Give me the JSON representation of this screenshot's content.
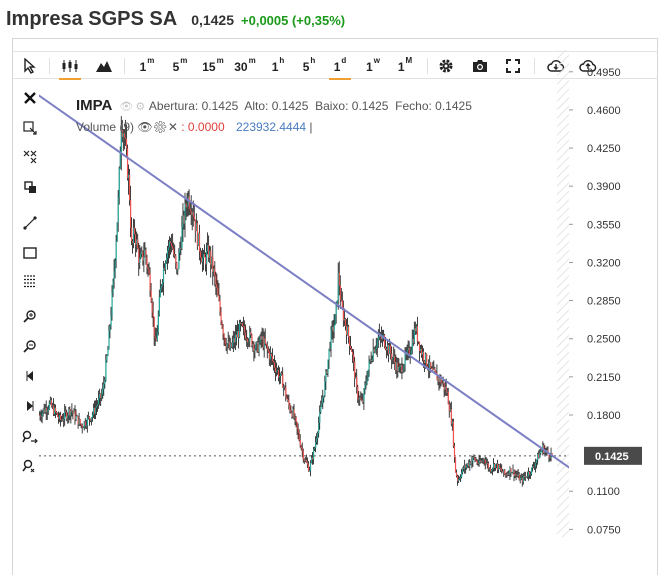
{
  "header": {
    "title": "Impresa SGPS SA",
    "price": "0,1425",
    "change": "+0,0005 (+0,35%)"
  },
  "toolbar": {
    "intervals": [
      "1m",
      "5m",
      "15m",
      "30m",
      "1h",
      "5h",
      "1d",
      "1w",
      "1M"
    ],
    "active_interval": "1d"
  },
  "legend": {
    "symbol": "IMPA",
    "open_label": "Abertura:",
    "open": "0.1425",
    "high_label": "Alto:",
    "high": "0.1425",
    "low_label": "Baixo:",
    "low": "0.1425",
    "close_label": "Fecho:",
    "close": "0.1425",
    "volume_label": "Volume (9)",
    "volume_value": "0.0000",
    "volume_ma": "223932.4444"
  },
  "colors": {
    "up": "#26a69a",
    "down": "#ef5350",
    "trendline": "#7b7fc4",
    "price_tag": "#4a4a4a",
    "accent": "#f0a030",
    "change_green": "#1a9a1a"
  },
  "chart_data": {
    "type": "candlestick",
    "symbol": "IMPA",
    "y_axis_ticks": [
      0.495,
      0.46,
      0.425,
      0.39,
      0.355,
      0.32,
      0.285,
      0.25,
      0.215,
      0.18,
      0.1425,
      0.11,
      0.075
    ],
    "y_axis_tick_labels": [
      "0.4950",
      "0.4600",
      "0.4250",
      "0.3900",
      "0.3550",
      "0.3200",
      "0.2850",
      "0.2500",
      "0.2150",
      "0.1800",
      "0.1425",
      "0.1100",
      "0.0750"
    ],
    "ylim": [
      0.068,
      0.515
    ],
    "last_price": 0.1425,
    "last_price_label": "0.1425",
    "price_path": [
      [
        0,
        0.18
      ],
      [
        0.02,
        0.19
      ],
      [
        0.04,
        0.175
      ],
      [
        0.06,
        0.185
      ],
      [
        0.08,
        0.17
      ],
      [
        0.1,
        0.18
      ],
      [
        0.12,
        0.2
      ],
      [
        0.13,
        0.24
      ],
      [
        0.14,
        0.3
      ],
      [
        0.15,
        0.38
      ],
      [
        0.155,
        0.45
      ],
      [
        0.16,
        0.44
      ],
      [
        0.17,
        0.39
      ],
      [
        0.175,
        0.33
      ],
      [
        0.18,
        0.35
      ],
      [
        0.19,
        0.32
      ],
      [
        0.2,
        0.33
      ],
      [
        0.21,
        0.3
      ],
      [
        0.22,
        0.24
      ],
      [
        0.23,
        0.3
      ],
      [
        0.24,
        0.33
      ],
      [
        0.25,
        0.34
      ],
      [
        0.26,
        0.31
      ],
      [
        0.27,
        0.35
      ],
      [
        0.28,
        0.38
      ],
      [
        0.29,
        0.37
      ],
      [
        0.3,
        0.34
      ],
      [
        0.31,
        0.32
      ],
      [
        0.32,
        0.33
      ],
      [
        0.33,
        0.31
      ],
      [
        0.34,
        0.28
      ],
      [
        0.35,
        0.25
      ],
      [
        0.36,
        0.24
      ],
      [
        0.37,
        0.25
      ],
      [
        0.38,
        0.26
      ],
      [
        0.39,
        0.255
      ],
      [
        0.4,
        0.25
      ],
      [
        0.41,
        0.24
      ],
      [
        0.42,
        0.25
      ],
      [
        0.43,
        0.24
      ],
      [
        0.44,
        0.23
      ],
      [
        0.45,
        0.22
      ],
      [
        0.46,
        0.21
      ],
      [
        0.47,
        0.19
      ],
      [
        0.48,
        0.18
      ],
      [
        0.49,
        0.16
      ],
      [
        0.5,
        0.14
      ],
      [
        0.51,
        0.13
      ],
      [
        0.52,
        0.15
      ],
      [
        0.53,
        0.18
      ],
      [
        0.54,
        0.21
      ],
      [
        0.55,
        0.25
      ],
      [
        0.56,
        0.27
      ],
      [
        0.565,
        0.31
      ],
      [
        0.57,
        0.28
      ],
      [
        0.58,
        0.26
      ],
      [
        0.59,
        0.24
      ],
      [
        0.6,
        0.2
      ],
      [
        0.61,
        0.19
      ],
      [
        0.62,
        0.22
      ],
      [
        0.63,
        0.24
      ],
      [
        0.64,
        0.25
      ],
      [
        0.65,
        0.25
      ],
      [
        0.66,
        0.24
      ],
      [
        0.67,
        0.23
      ],
      [
        0.68,
        0.22
      ],
      [
        0.69,
        0.23
      ],
      [
        0.7,
        0.24
      ],
      [
        0.71,
        0.26
      ],
      [
        0.72,
        0.24
      ],
      [
        0.73,
        0.23
      ],
      [
        0.74,
        0.22
      ],
      [
        0.75,
        0.215
      ],
      [
        0.76,
        0.21
      ],
      [
        0.77,
        0.2
      ],
      [
        0.78,
        0.17
      ],
      [
        0.785,
        0.13
      ],
      [
        0.79,
        0.12
      ],
      [
        0.8,
        0.13
      ],
      [
        0.81,
        0.135
      ],
      [
        0.82,
        0.14
      ],
      [
        0.83,
        0.135
      ],
      [
        0.84,
        0.14
      ],
      [
        0.85,
        0.13
      ],
      [
        0.86,
        0.135
      ],
      [
        0.87,
        0.13
      ],
      [
        0.88,
        0.125
      ],
      [
        0.89,
        0.13
      ],
      [
        0.9,
        0.125
      ],
      [
        0.91,
        0.12
      ],
      [
        0.92,
        0.125
      ],
      [
        0.93,
        0.13
      ],
      [
        0.94,
        0.14
      ],
      [
        0.95,
        0.15
      ],
      [
        0.96,
        0.145
      ],
      [
        0.97,
        0.1425
      ]
    ],
    "trendline": [
      [
        -0.02,
        0.48
      ],
      [
        1.02,
        0.125
      ]
    ]
  }
}
